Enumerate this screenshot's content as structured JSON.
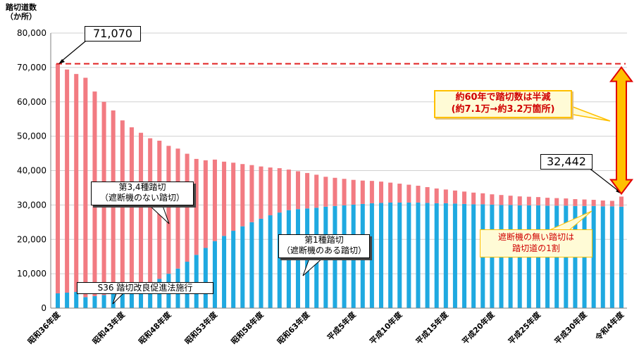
{
  "chart_data": {
    "type": "bar",
    "stacked": true,
    "ylabel": "踏切道数\n（か所）",
    "ylim": [
      0,
      80000
    ],
    "yticks": [
      "0",
      "10,000",
      "20,000",
      "30,000",
      "40,000",
      "50,000",
      "60,000",
      "70,000",
      "80,000"
    ],
    "xtick_labels": [
      "昭和36年度",
      "昭和43年度",
      "昭和48年度",
      "昭和53年度",
      "昭和58年度",
      "昭和63年度",
      "平成5年度",
      "平成10年度",
      "平成15年度",
      "平成20年度",
      "平成25年度",
      "平成30年度",
      "令和4年度"
    ],
    "categories": [
      "S36",
      "S37",
      "S38",
      "S39",
      "S40",
      "S41",
      "S42",
      "S43",
      "S44",
      "S45",
      "S46",
      "S47",
      "S48",
      "S49",
      "S50",
      "S51",
      "S52",
      "S53",
      "S54",
      "S55",
      "S56",
      "S57",
      "S58",
      "S59",
      "S60",
      "S61",
      "S62",
      "S63",
      "H1",
      "H2",
      "H3",
      "H4",
      "H5",
      "H6",
      "H7",
      "H8",
      "H9",
      "H10",
      "H11",
      "H12",
      "H13",
      "H14",
      "H15",
      "H16",
      "H17",
      "H18",
      "H19",
      "H20",
      "H21",
      "H22",
      "H23",
      "H24",
      "H25",
      "H26",
      "H27",
      "H28",
      "H29",
      "H30",
      "R1",
      "R2",
      "R3",
      "R4"
    ],
    "series": [
      {
        "name": "第1種踏切（遮断機のある踏切）",
        "color": "#1fa9e0",
        "values": [
          4300,
          4500,
          4700,
          3200,
          3500,
          3800,
          4200,
          4600,
          5100,
          6000,
          7000,
          8500,
          10000,
          11500,
          13500,
          15500,
          17500,
          19500,
          21000,
          22500,
          23800,
          25000,
          26000,
          27000,
          27800,
          28500,
          28800,
          29000,
          29200,
          29500,
          29700,
          29900,
          30100,
          30300,
          30500,
          30600,
          30700,
          30700,
          30700,
          30700,
          30600,
          30500,
          30500,
          30400,
          30300,
          30200,
          30200,
          30100,
          30000,
          30000,
          29900,
          29900,
          29900,
          29800,
          29800,
          29800,
          29700,
          29700,
          29700,
          29600,
          29600,
          29500
        ]
      },
      {
        "name": "第3,4種踏切（遮断機のない踏切）",
        "color": "#f27b82",
        "values": [
          66770,
          64900,
          63400,
          63800,
          59500,
          56200,
          53300,
          50000,
          47500,
          45000,
          42400,
          40200,
          37200,
          34900,
          31400,
          27900,
          25500,
          23700,
          21600,
          19800,
          18100,
          16600,
          15200,
          13900,
          12900,
          11800,
          11000,
          10300,
          9600,
          8700,
          8200,
          7700,
          7200,
          6800,
          6500,
          6200,
          5800,
          5500,
          5200,
          4900,
          4600,
          4300,
          4000,
          3800,
          3600,
          3400,
          3200,
          3000,
          2900,
          2700,
          2600,
          2500,
          2400,
          2300,
          2200,
          2100,
          2000,
          1900,
          1800,
          1700,
          1600,
          2942
        ]
      }
    ],
    "annotations": {
      "start_value": "71,070",
      "end_value": "32,442",
      "halved_note": "約60年で踏切数は半減\n(約7.1万→約3.2万箇所)",
      "unguarded_note": "遮断機の無い踏切は\n踏切道の1割",
      "label_34": "第3,4種踏切\n（遮断機のない踏切）",
      "label_1": "第1種踏切\n（遮断機のある踏切）",
      "law_note": "S36  踏切改良促進法施行"
    },
    "reference_line": {
      "value": 71070,
      "color": "#e02020",
      "style": "dashed"
    },
    "grid": true
  }
}
